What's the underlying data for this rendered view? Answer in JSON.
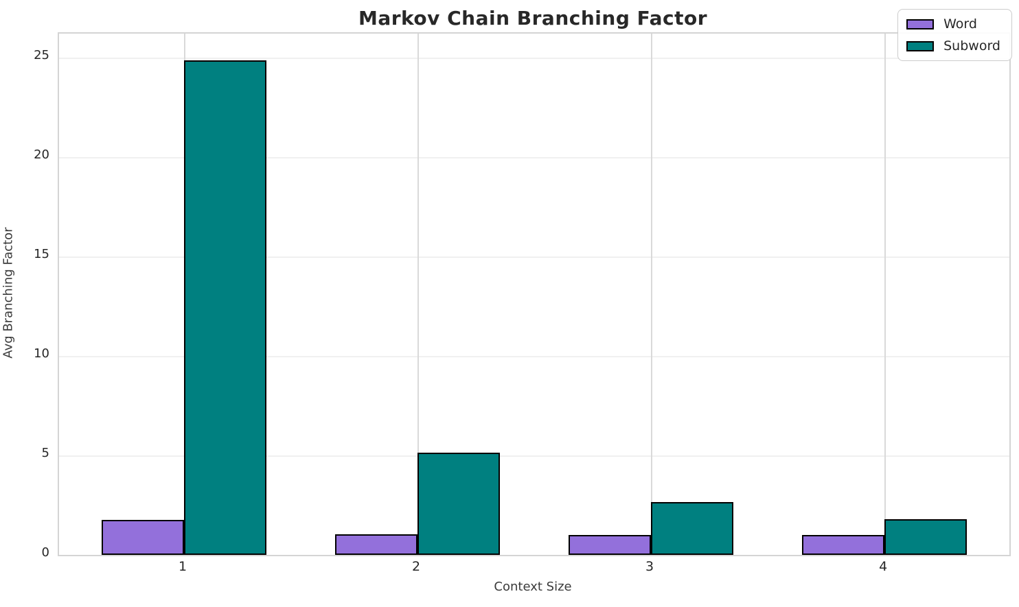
{
  "chart_data": {
    "type": "bar",
    "title": "Markov Chain Branching Factor",
    "xlabel": "Context Size",
    "ylabel": "Avg Branching Factor",
    "categories": [
      "1",
      "2",
      "3",
      "4"
    ],
    "series": [
      {
        "name": "Word",
        "color": "#9370DB",
        "values": [
          1.75,
          1.05,
          1.0,
          1.0
        ]
      },
      {
        "name": "Subword",
        "color": "#008080",
        "values": [
          24.85,
          5.15,
          2.65,
          1.8
        ]
      }
    ],
    "ylim": [
      0,
      26.2
    ],
    "yticks": [
      0,
      5,
      10,
      15,
      20,
      25
    ],
    "grid": true,
    "legend_position": "upper right",
    "bar_edge_color": "#000000",
    "colors": {
      "word_fill": "#9370DB",
      "subword_fill": "#008080",
      "grid_horizontal": "#f0f0f0",
      "grid_vertical": "#d9d9d9",
      "spine": "#d4d4d4",
      "text": "#262626"
    }
  }
}
